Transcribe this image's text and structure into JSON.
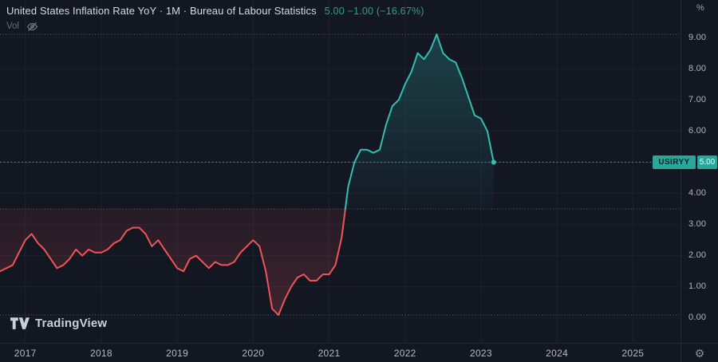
{
  "header": {
    "title": "United States Inflation Rate YoY · 1M · Bureau of Labour Statistics",
    "change_text": "5.00 −1.00 (−16.67%)",
    "vol_label": "Vol"
  },
  "watermark": {
    "label": "TradingView"
  },
  "badges": {
    "symbol": "USIRYY",
    "price": "5.00"
  },
  "axes": {
    "percent": "%",
    "y_ticks": [
      {
        "v": 9,
        "label": "9.00"
      },
      {
        "v": 8,
        "label": "8.00"
      },
      {
        "v": 7,
        "label": "7.00"
      },
      {
        "v": 6,
        "label": "6.00"
      },
      {
        "v": 5,
        "label": "5.00"
      },
      {
        "v": 4,
        "label": "4.00"
      },
      {
        "v": 3,
        "label": "3.00"
      },
      {
        "v": 2,
        "label": "2.00"
      },
      {
        "v": 1,
        "label": "1.00"
      },
      {
        "v": 0,
        "label": "0.00"
      }
    ],
    "x_ticks": [
      "2017",
      "2018",
      "2019",
      "2020",
      "2021",
      "2022",
      "2023",
      "2024",
      "2025"
    ]
  },
  "colors": {
    "background": "#131722",
    "up": "#35bdb2",
    "down": "#f0535a",
    "accent_badge": "#2aa79b",
    "accent_text": "#2d9e90",
    "grid": "#1d222e",
    "divider": "#232835",
    "dotted": "#70757f"
  },
  "chart_data": {
    "type": "line",
    "style": "baseline",
    "symbol": "USIRYY",
    "title": "United States Inflation Rate YoY",
    "interval": "1M",
    "unit": "%",
    "baseline": 3.5,
    "x_start": "2016-09",
    "x_end": "2023-03",
    "frequency": "monthly",
    "values": [
      1.5,
      1.6,
      1.7,
      2.1,
      2.5,
      2.7,
      2.4,
      2.2,
      1.9,
      1.6,
      1.7,
      1.9,
      2.2,
      2.0,
      2.2,
      2.1,
      2.1,
      2.2,
      2.4,
      2.5,
      2.8,
      2.9,
      2.9,
      2.7,
      2.3,
      2.5,
      2.2,
      1.9,
      1.6,
      1.5,
      1.9,
      2.0,
      1.8,
      1.6,
      1.8,
      1.7,
      1.7,
      1.8,
      2.1,
      2.3,
      2.5,
      2.3,
      1.5,
      0.3,
      0.1,
      0.6,
      1.0,
      1.3,
      1.4,
      1.2,
      1.2,
      1.4,
      1.4,
      1.7,
      2.6,
      4.2,
      5.0,
      5.4,
      5.4,
      5.3,
      5.4,
      6.2,
      6.8,
      7.0,
      7.5,
      7.9,
      8.5,
      8.3,
      8.6,
      9.1,
      8.5,
      8.3,
      8.2,
      7.7,
      7.1,
      6.5,
      6.4,
      6.0,
      5.0
    ],
    "high": 9.1,
    "low": 0.1,
    "last": 5.0,
    "change": -1.0,
    "change_pct": -16.67,
    "xlabel": "",
    "ylabel": "%",
    "ylim": [
      -0.8,
      10.2
    ],
    "grid": true
  }
}
